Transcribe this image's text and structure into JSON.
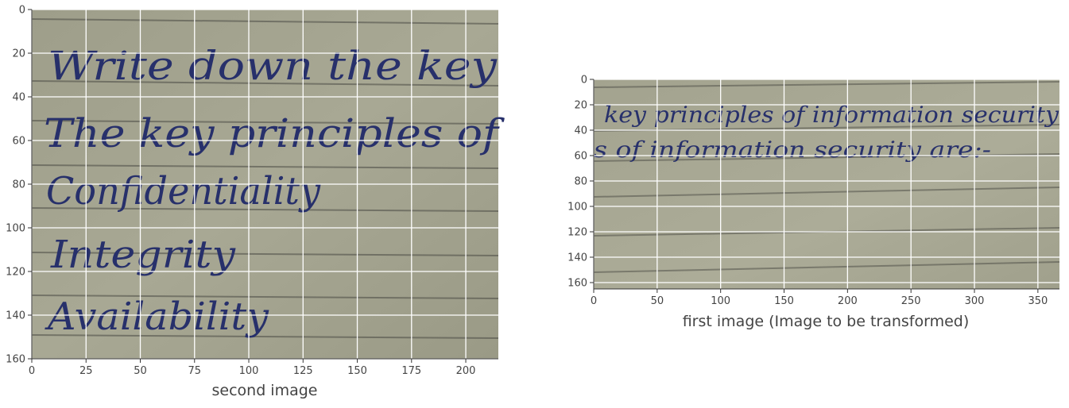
{
  "panels": [
    {
      "id": "second",
      "xlabel": "second image",
      "x_ticks": [
        0,
        25,
        50,
        75,
        100,
        125,
        150,
        175,
        200
      ],
      "y_ticks": [
        0,
        20,
        40,
        60,
        80,
        100,
        120,
        140,
        160
      ],
      "x_extent": [
        0,
        215
      ],
      "y_extent": [
        0,
        160
      ],
      "text_lines": [
        "Write down the key",
        "The key principles of",
        "Confidentiality",
        "Integrity",
        "Availability"
      ]
    },
    {
      "id": "first",
      "xlabel": "first image (Image to be transformed)",
      "x_ticks": [
        0,
        50,
        100,
        150,
        200,
        250,
        300,
        350
      ],
      "y_ticks": [
        0,
        20,
        40,
        60,
        80,
        100,
        120,
        140,
        160
      ],
      "x_extent": [
        0,
        367
      ],
      "y_extent": [
        0,
        165
      ],
      "text_lines": [
        "key principles of information security",
        "s of information security are:-"
      ]
    }
  ],
  "colors": {
    "paper": "#a6a692",
    "ink": "#27306b",
    "grid": "#ffffff"
  }
}
